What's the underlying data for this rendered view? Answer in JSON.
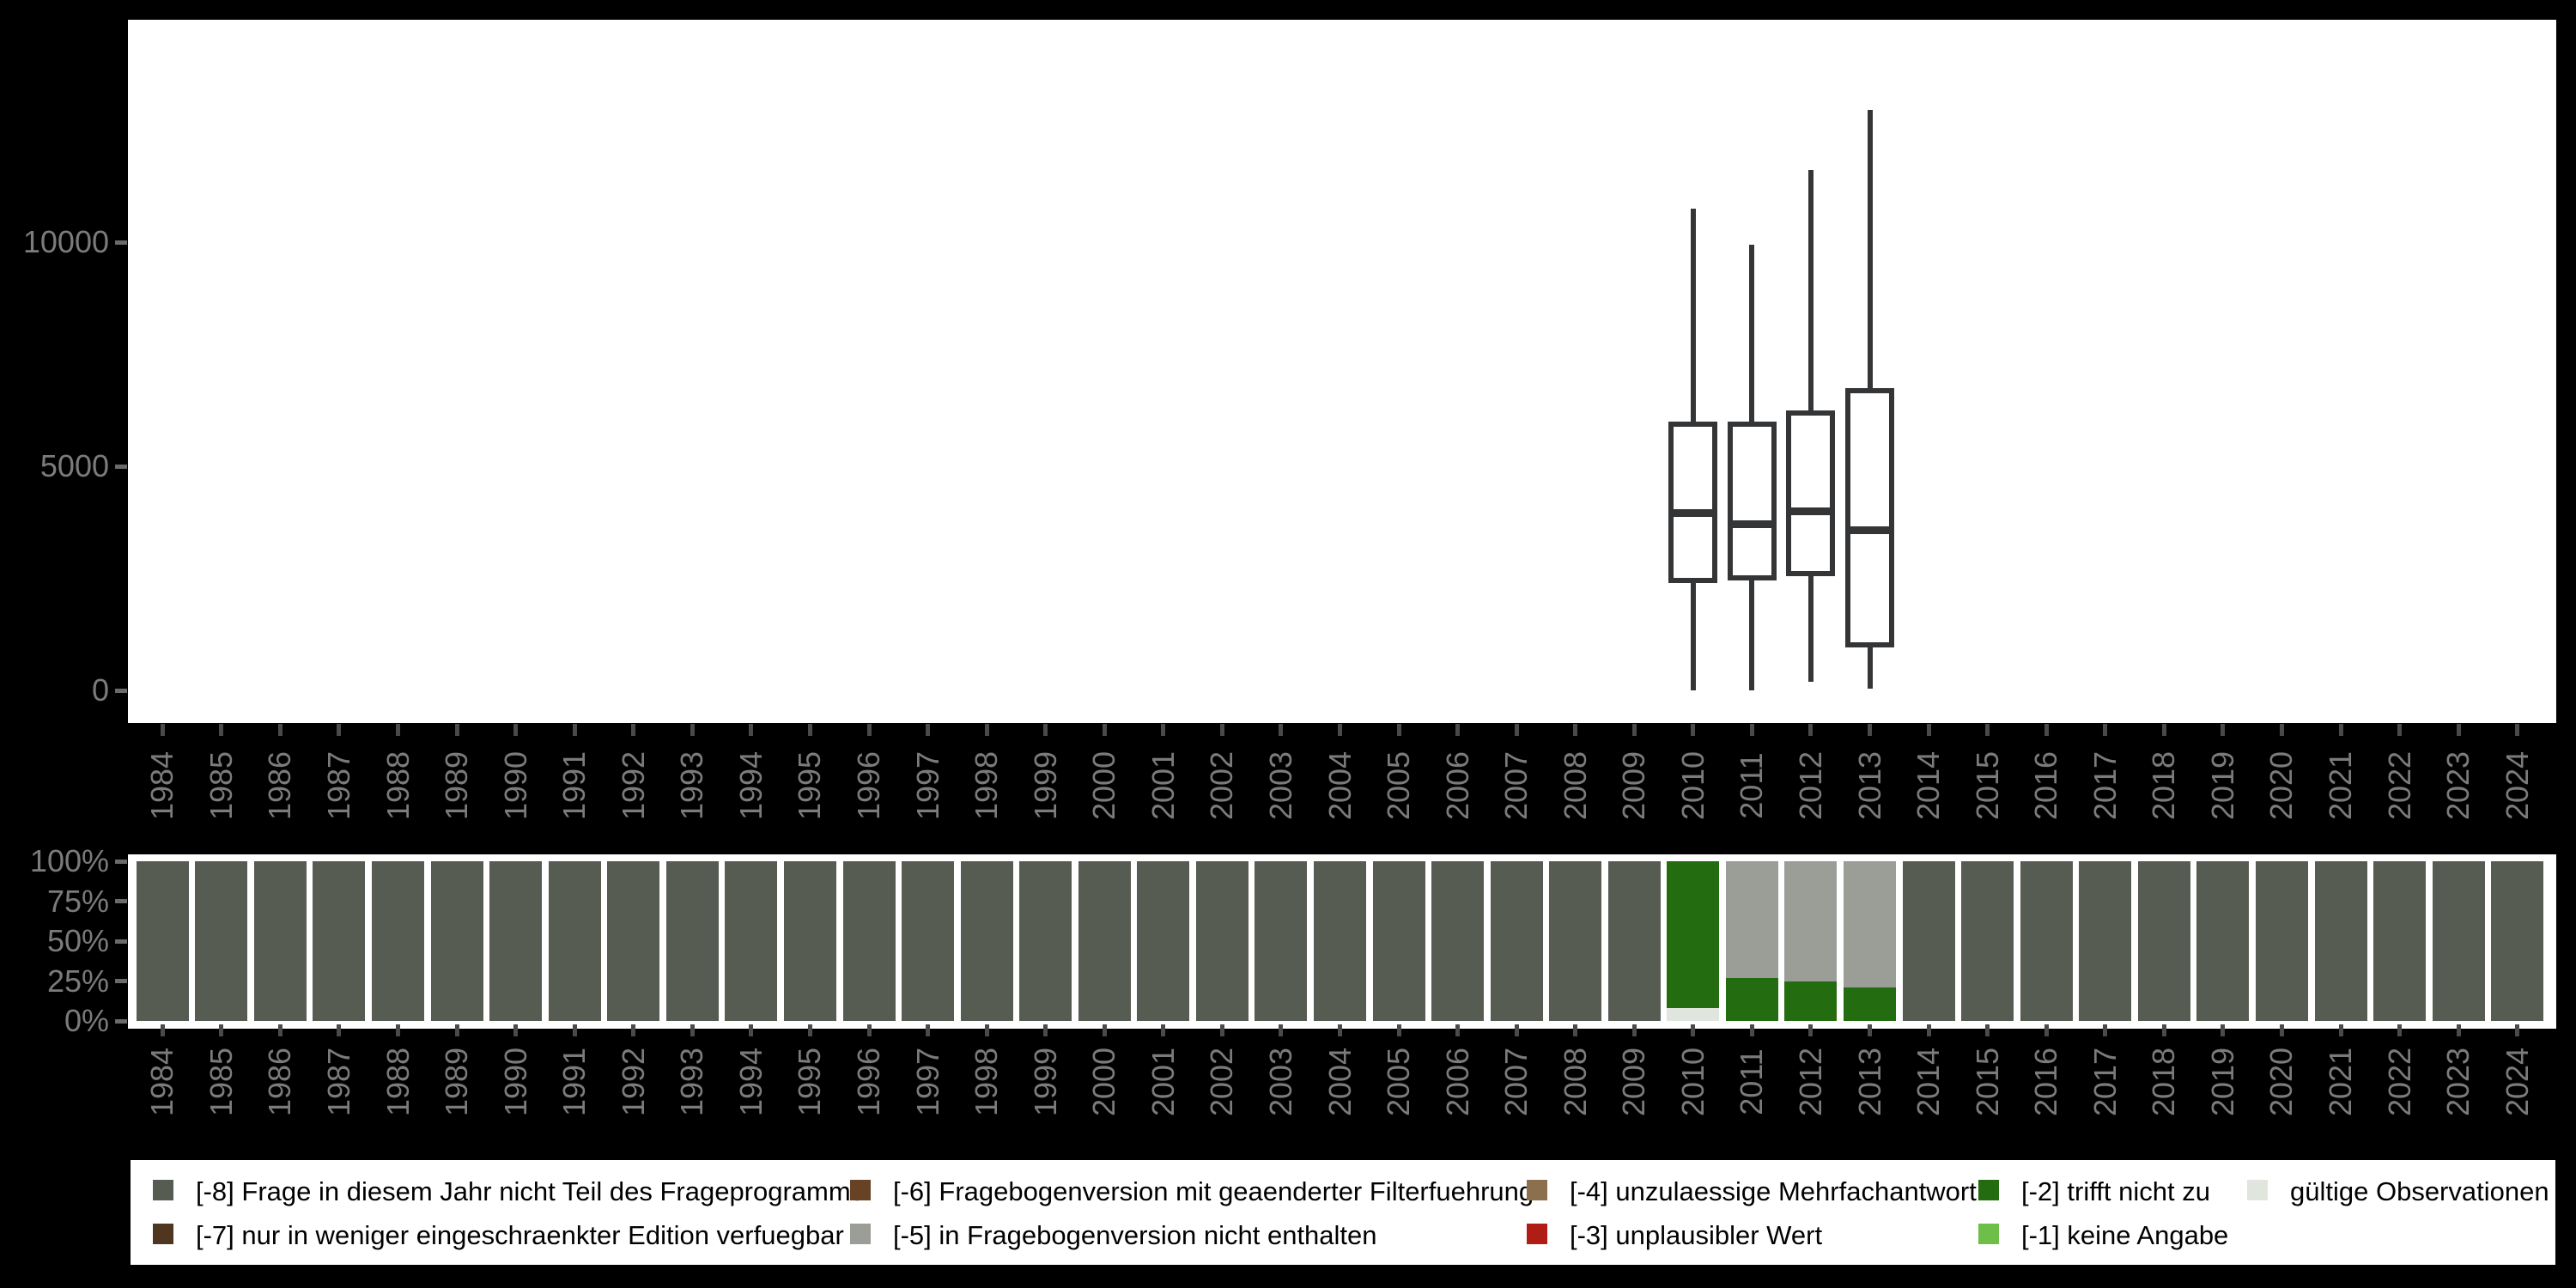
{
  "years": [
    "1984",
    "1985",
    "1986",
    "1987",
    "1988",
    "1989",
    "1990",
    "1991",
    "1992",
    "1993",
    "1994",
    "1995",
    "1996",
    "1997",
    "1998",
    "1999",
    "2000",
    "2001",
    "2002",
    "2003",
    "2004",
    "2005",
    "2006",
    "2007",
    "2008",
    "2009",
    "2010",
    "2011",
    "2012",
    "2013",
    "2014",
    "2015",
    "2016",
    "2017",
    "2018",
    "2019",
    "2020",
    "2021",
    "2022",
    "2023",
    "2024"
  ],
  "upper_axis": {
    "yticks": [
      {
        "label": "0",
        "value": 0
      },
      {
        "label": "5000",
        "value": 5000
      },
      {
        "label": "10000",
        "value": 10000
      }
    ]
  },
  "lower_axis": {
    "yticks": [
      {
        "label": "100%",
        "value": 100
      },
      {
        "label": "75%",
        "value": 75
      },
      {
        "label": "50%",
        "value": 50
      },
      {
        "label": "25%",
        "value": 25
      },
      {
        "label": "0%",
        "value": 0
      }
    ]
  },
  "colors": {
    "background": "#000000",
    "plot_background": "#ffffff",
    "box_stroke": "#333537",
    "axis_tick": "#4a4a4a",
    "axis_label_gray": "#7b7b7b",
    "cat_-8": "#565C52",
    "cat_-7": "#4F3621",
    "cat_-6": "#684225",
    "cat_-5": "#9A9E96",
    "cat_-4": "#8C6F4D",
    "cat_-3": "#AF1D14",
    "cat_-2": "#246C10",
    "cat_-1": "#6EBE4A",
    "cat_valid": "#E0E5DE"
  },
  "legend": {
    "items": [
      {
        "code": "-8",
        "label": "[-8] Frage in diesem Jahr nicht Teil des Frageprogramms",
        "color": "#565C52",
        "col": 0,
        "row": 0
      },
      {
        "code": "-7",
        "label": "[-7] nur in weniger eingeschraenkter Edition verfuegbar",
        "color": "#4F3621",
        "col": 0,
        "row": 1
      },
      {
        "code": "-6",
        "label": "[-6] Fragebogenversion mit geaenderter Filterfuehrung",
        "color": "#684225",
        "col": 1,
        "row": 0
      },
      {
        "code": "-5",
        "label": "[-5] in Fragebogenversion nicht enthalten",
        "color": "#9A9E96",
        "col": 1,
        "row": 1
      },
      {
        "code": "-4",
        "label": "[-4] unzulaessige Mehrfachantwort",
        "color": "#8C6F4D",
        "col": 2,
        "row": 0
      },
      {
        "code": "-3",
        "label": "[-3] unplausibler Wert",
        "color": "#AF1D14",
        "col": 2,
        "row": 1
      },
      {
        "code": "-2",
        "label": "[-2] trifft nicht zu",
        "color": "#246C10",
        "col": 3,
        "row": 0
      },
      {
        "code": "-1",
        "label": "[-1] keine Angabe",
        "color": "#6EBE4A",
        "col": 3,
        "row": 1
      },
      {
        "code": "valid",
        "label": "gültige Observationen",
        "color": "#E0E5DE",
        "col": 4,
        "row": 0
      }
    ]
  },
  "chart_data": [
    {
      "type": "boxplot",
      "title": "",
      "xlabel": "",
      "ylabel": "",
      "axis_ticks": [
        0,
        5000,
        10000
      ],
      "ylim": [
        -800,
        15000
      ],
      "categories_note": "x axis shows years 1984-2024; boxes exist only for 2010-2013",
      "boxes": [
        {
          "year": "2010",
          "min": 0,
          "q1": 2400,
          "median": 3950,
          "q3": 6000,
          "max": 10750
        },
        {
          "year": "2011",
          "min": 0,
          "q1": 2450,
          "median": 3700,
          "q3": 6000,
          "max": 9950
        },
        {
          "year": "2012",
          "min": 200,
          "q1": 2550,
          "median": 4000,
          "q3": 6250,
          "max": 11600
        },
        {
          "year": "2013",
          "min": 30,
          "q1": 950,
          "median": 3580,
          "q3": 6750,
          "max": 12950
        }
      ]
    },
    {
      "type": "bar",
      "stacked": true,
      "unit": "percent",
      "ylim": [
        0,
        100
      ],
      "yticks": [
        "0%",
        "25%",
        "50%",
        "75%",
        "100%"
      ],
      "categories_note": "one bar per year 1984-2024; segments listed bottom_to_top",
      "default_stack": [
        {
          "category": "-8",
          "pct": 100
        }
      ],
      "overrides": {
        "2010": [
          {
            "category": "valid",
            "pct": 8
          },
          {
            "category": "-2",
            "pct": 92
          }
        ],
        "2011": [
          {
            "category": "-2",
            "pct": 27
          },
          {
            "category": "-5",
            "pct": 73
          }
        ],
        "2012": [
          {
            "category": "-2",
            "pct": 25
          },
          {
            "category": "-5",
            "pct": 75
          }
        ],
        "2013": [
          {
            "category": "-2",
            "pct": 21
          },
          {
            "category": "-5",
            "pct": 79
          }
        ]
      }
    }
  ]
}
